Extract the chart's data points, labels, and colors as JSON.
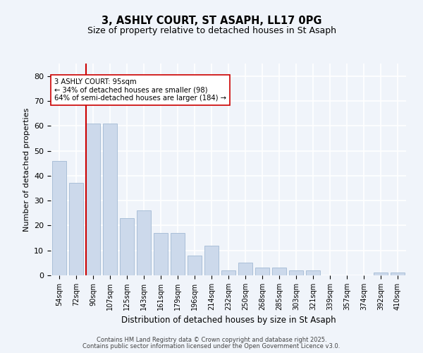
{
  "title1": "3, ASHLY COURT, ST ASAPH, LL17 0PG",
  "title2": "Size of property relative to detached houses in St Asaph",
  "xlabel": "Distribution of detached houses by size in St Asaph",
  "ylabel": "Number of detached properties",
  "categories": [
    "54sqm",
    "72sqm",
    "90sqm",
    "107sqm",
    "125sqm",
    "143sqm",
    "161sqm",
    "179sqm",
    "196sqm",
    "214sqm",
    "232sqm",
    "250sqm",
    "268sqm",
    "285sqm",
    "303sqm",
    "321sqm",
    "339sqm",
    "357sqm",
    "374sqm",
    "392sqm",
    "410sqm"
  ],
  "values": [
    46,
    37,
    61,
    61,
    23,
    26,
    17,
    17,
    8,
    12,
    2,
    5,
    3,
    3,
    2,
    2,
    0,
    0,
    0,
    1,
    1
  ],
  "bar_color": "#ccd9eb",
  "bar_edge_color": "#aabfd8",
  "vline_color": "#cc0000",
  "vline_index": 2.5,
  "annotation_text": "3 ASHLY COURT: 95sqm\n← 34% of detached houses are smaller (98)\n64% of semi-detached houses are larger (184) →",
  "annotation_box_facecolor": "#ffffff",
  "annotation_box_edgecolor": "#cc0000",
  "ylim_max": 85,
  "yticks": [
    0,
    10,
    20,
    30,
    40,
    50,
    60,
    70,
    80
  ],
  "bg_color": "#f0f4fa",
  "grid_color": "#ffffff",
  "footer1": "Contains HM Land Registry data © Crown copyright and database right 2025.",
  "footer2": "Contains public sector information licensed under the Open Government Licence v3.0."
}
